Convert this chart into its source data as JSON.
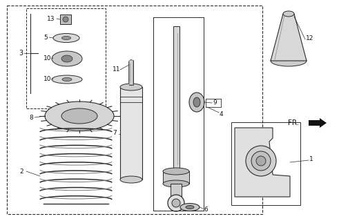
{
  "bg_color": "#ffffff",
  "line_color": "#2a2a2a",
  "fig_width": 4.91,
  "fig_height": 3.2,
  "dpi": 100
}
